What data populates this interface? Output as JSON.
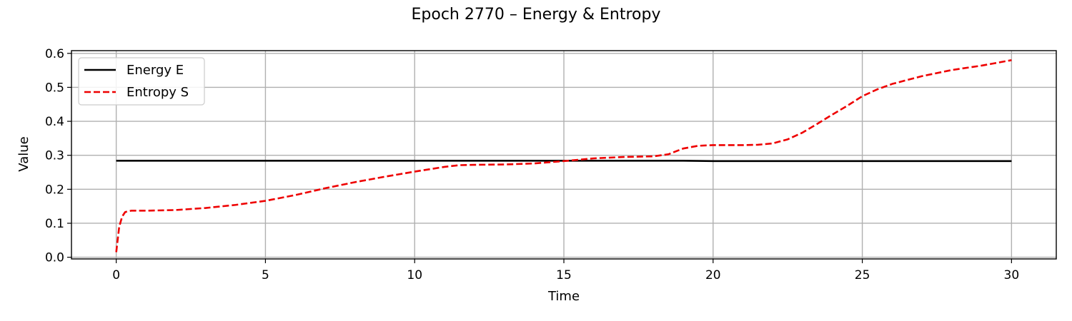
{
  "chart_data": {
    "type": "line",
    "title": "Epoch 2770 – Energy & Entropy",
    "xlabel": "Time",
    "ylabel": "Value",
    "xlim": [
      -1.5,
      31.5
    ],
    "ylim": [
      -0.005,
      0.608
    ],
    "xticks": [
      0,
      5,
      10,
      15,
      20,
      25,
      30
    ],
    "xtick_labels": [
      "0",
      "5",
      "10",
      "15",
      "20",
      "25",
      "30"
    ],
    "yticks": [
      0.0,
      0.1,
      0.2,
      0.3,
      0.4,
      0.5,
      0.6
    ],
    "ytick_labels": [
      "0.0",
      "0.1",
      "0.2",
      "0.3",
      "0.4",
      "0.5",
      "0.6"
    ],
    "grid": true,
    "legend_position": "upper-left",
    "series": [
      {
        "name": "Energy E",
        "color": "#000000",
        "style": "solid",
        "x": [
          0,
          5,
          10,
          15,
          19,
          19.5,
          20,
          25,
          30
        ],
        "y": [
          0.284,
          0.284,
          0.284,
          0.284,
          0.284,
          0.2835,
          0.283,
          0.283,
          0.283
        ]
      },
      {
        "name": "Entropy S",
        "color": "#ee0000",
        "style": "dashed",
        "x": [
          0,
          0.1,
          0.2,
          0.3,
          0.5,
          1,
          2,
          3,
          4,
          5,
          6,
          7,
          8,
          9,
          10,
          11,
          11.5,
          12,
          13,
          14,
          15,
          16,
          17,
          18,
          18.5,
          19,
          19.5,
          20,
          21,
          21.5,
          22,
          22.5,
          23,
          23.5,
          24,
          24.5,
          25,
          25.5,
          26,
          27,
          28,
          29,
          30
        ],
        "y": [
          0.015,
          0.09,
          0.12,
          0.133,
          0.137,
          0.137,
          0.139,
          0.145,
          0.154,
          0.166,
          0.183,
          0.203,
          0.221,
          0.237,
          0.252,
          0.266,
          0.271,
          0.272,
          0.273,
          0.276,
          0.283,
          0.291,
          0.295,
          0.297,
          0.303,
          0.32,
          0.328,
          0.33,
          0.33,
          0.331,
          0.335,
          0.347,
          0.367,
          0.393,
          0.42,
          0.446,
          0.474,
          0.494,
          0.51,
          0.533,
          0.551,
          0.564,
          0.58
        ]
      }
    ]
  }
}
